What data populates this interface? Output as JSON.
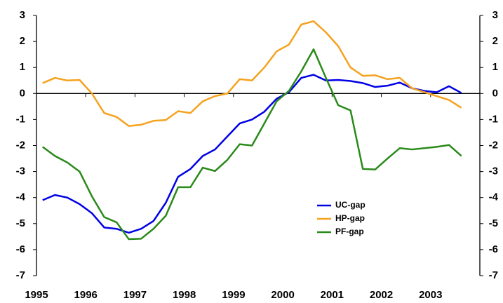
{
  "chart_data": {
    "type": "line",
    "x": [
      1995.125,
      1995.375,
      1995.625,
      1995.875,
      1996.125,
      1996.375,
      1996.625,
      1996.875,
      1997.125,
      1997.375,
      1997.625,
      1997.875,
      1998.125,
      1998.375,
      1998.625,
      1998.875,
      1999.125,
      1999.375,
      1999.625,
      1999.875,
      2000.125,
      2000.375,
      2000.625,
      2000.875,
      2001.125,
      2001.375,
      2001.625,
      2001.875,
      2002.125,
      2002.375,
      2002.625,
      2002.875,
      2003.125,
      2003.375,
      2003.625
    ],
    "series": [
      {
        "name": "UC-gap",
        "color": "#0000e6",
        "values": [
          -4.1,
          -3.9,
          -4.0,
          -4.25,
          -4.6,
          -5.15,
          -5.2,
          -5.35,
          -5.2,
          -4.9,
          -4.2,
          -3.2,
          -2.9,
          -2.4,
          -2.15,
          -1.65,
          -1.15,
          -1.0,
          -0.7,
          -0.2,
          0.05,
          0.6,
          0.72,
          0.5,
          0.52,
          0.48,
          0.4,
          0.25,
          0.3,
          0.42,
          0.2,
          0.1,
          0.05,
          0.28,
          0.02
        ]
      },
      {
        "name": "HP-gap",
        "color": "#f5a21f",
        "values": [
          0.4,
          0.6,
          0.5,
          0.52,
          0.0,
          -0.75,
          -0.9,
          -1.25,
          -1.2,
          -1.05,
          -1.02,
          -0.68,
          -0.75,
          -0.3,
          -0.1,
          0.0,
          0.55,
          0.5,
          1.0,
          1.62,
          1.88,
          2.65,
          2.78,
          2.35,
          1.82,
          1.0,
          0.68,
          0.7,
          0.55,
          0.6,
          0.2,
          0.05,
          -0.1,
          -0.25,
          -0.55
        ]
      },
      {
        "name": "PF-gap",
        "color": "#2a8a1a",
        "values": [
          -2.05,
          -2.4,
          -2.65,
          -3.0,
          -3.95,
          -4.75,
          -4.95,
          -5.6,
          -5.58,
          -5.2,
          -4.7,
          -3.6,
          -3.6,
          -2.85,
          -2.98,
          -2.55,
          -1.95,
          -2.0,
          -1.15,
          -0.3,
          0.1,
          0.85,
          1.7,
          0.6,
          -0.45,
          -0.65,
          -2.9,
          -2.92,
          -2.5,
          -2.1,
          -2.15,
          -2.1,
          -2.05,
          -1.98,
          -2.4
        ]
      }
    ],
    "xlim": [
      1995,
      2004
    ],
    "xticks": [
      1995,
      1996,
      1997,
      1998,
      1999,
      2000,
      2001,
      2002,
      2003
    ],
    "ylim": [
      -7,
      3
    ],
    "yticks": [
      3,
      2,
      1,
      0,
      -1,
      -2,
      -3,
      -4,
      -5,
      -6,
      -7
    ],
    "y2lim": [
      -7,
      3
    ],
    "y2ticks": [
      3,
      2,
      1,
      0,
      -1,
      -2,
      -3,
      -4,
      -5,
      -6,
      -7
    ],
    "legend": "center-right"
  }
}
